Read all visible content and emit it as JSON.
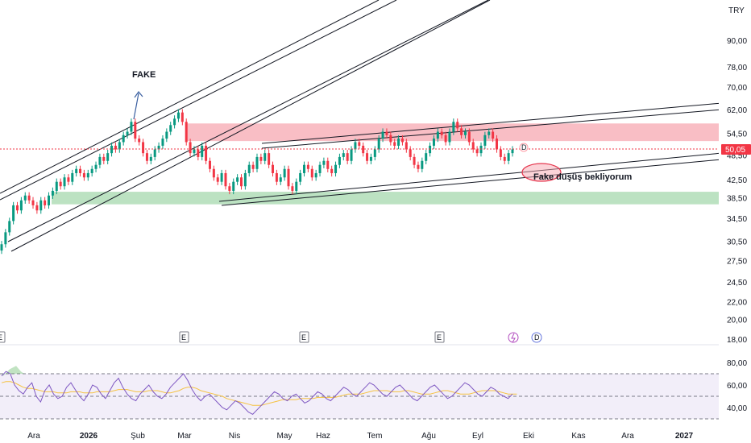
{
  "chart_data": {
    "type": "candlestick",
    "currency": "TRY",
    "price_axis": {
      "ticks": [
        {
          "v": 90,
          "label": "90,00"
        },
        {
          "v": 78,
          "label": "78,00"
        },
        {
          "v": 70,
          "label": "70,00"
        },
        {
          "v": 62,
          "label": "62,00"
        },
        {
          "v": 54.5,
          "label": "54,50"
        },
        {
          "v": 48.5,
          "label": "48,50"
        },
        {
          "v": 42.5,
          "label": "42,50"
        },
        {
          "v": 38.5,
          "label": "38,50"
        },
        {
          "v": 34.5,
          "label": "34,50"
        },
        {
          "v": 30.5,
          "label": "30,50"
        },
        {
          "v": 27.5,
          "label": "27,50"
        },
        {
          "v": 24.5,
          "label": "24,50"
        },
        {
          "v": 22,
          "label": "22,00"
        },
        {
          "v": 20,
          "label": "20,00"
        },
        {
          "v": 18,
          "label": "18,00"
        }
      ],
      "scale": "log"
    },
    "last_price": {
      "value": 50.05,
      "label": "50,05",
      "color": "#f23645"
    },
    "time_axis": [
      {
        "label": "Ara",
        "bold": false
      },
      {
        "label": "2026",
        "bold": true
      },
      {
        "label": "Şub",
        "bold": false
      },
      {
        "label": "Mar",
        "bold": false
      },
      {
        "label": "Nis",
        "bold": false
      },
      {
        "label": "May",
        "bold": false
      },
      {
        "label": "Haz",
        "bold": false
      },
      {
        "label": "Tem",
        "bold": false
      },
      {
        "label": "Ağu",
        "bold": false
      },
      {
        "label": "Eyl",
        "bold": false
      },
      {
        "label": "Eki",
        "bold": false
      },
      {
        "label": "Kas",
        "bold": false
      },
      {
        "label": "Ara",
        "bold": false
      },
      {
        "label": "2027",
        "bold": true
      }
    ],
    "candles_close_approx": [
      30,
      32,
      34,
      37,
      36,
      38,
      39,
      38,
      37,
      36,
      38,
      37,
      39,
      40,
      42,
      41,
      43,
      42,
      44,
      45,
      44,
      43,
      44,
      45,
      46,
      48,
      47,
      49,
      51,
      50,
      52,
      54,
      55,
      58,
      53,
      52,
      49,
      47,
      48,
      50,
      51,
      53,
      55,
      57,
      59,
      61,
      58,
      52,
      49,
      50,
      48,
      51,
      47,
      45,
      43,
      42,
      44,
      41,
      40,
      42,
      43,
      41,
      44,
      46,
      45,
      48,
      47,
      49,
      46,
      44,
      42,
      43,
      45,
      41,
      40,
      42,
      44,
      46,
      45,
      43,
      44,
      46,
      47,
      45,
      44,
      46,
      48,
      49,
      47,
      50,
      52,
      51,
      49,
      47,
      48,
      50,
      53,
      55,
      54,
      52,
      51,
      53,
      52,
      50,
      48,
      46,
      45,
      47,
      49,
      51,
      53,
      55,
      54,
      52,
      55,
      58,
      56,
      54,
      55,
      52,
      50,
      49,
      51,
      54,
      55,
      53,
      50,
      48,
      47,
      49,
      50
    ],
    "zones": [
      {
        "name": "resistance",
        "low": 52.3,
        "high": 57.5,
        "color": "#f7a8b1"
      },
      {
        "name": "support",
        "low": 37.2,
        "high": 39.8,
        "color": "#a5d8ad"
      }
    ],
    "annotations": [
      {
        "text": "FAKE"
      },
      {
        "text": "Fake düşüş bekliyorum"
      }
    ],
    "events": {
      "earnings_marker": "E",
      "dividend_marker": "D"
    },
    "rsi": {
      "ticks": [
        {
          "v": 80,
          "label": "80,00"
        },
        {
          "v": 60,
          "label": "60,00"
        },
        {
          "v": 40,
          "label": "40,00"
        }
      ],
      "upper": 70,
      "middle": 50,
      "lower": 30,
      "values_approx": [
        68,
        72,
        70,
        60,
        55,
        52,
        58,
        62,
        50,
        45,
        55,
        60,
        52,
        48,
        50,
        58,
        62,
        56,
        50,
        46,
        52,
        60,
        58,
        52,
        48,
        55,
        62,
        66,
        58,
        52,
        48,
        46,
        52,
        56,
        60,
        54,
        50,
        48,
        52,
        58,
        62,
        66,
        70,
        64,
        56,
        50,
        46,
        50,
        52,
        48,
        44,
        40,
        38,
        42,
        46,
        44,
        40,
        36,
        34,
        38,
        42,
        46,
        50,
        54,
        52,
        48,
        46,
        50,
        52,
        48,
        44,
        46,
        50,
        54,
        52,
        48,
        46,
        50,
        54,
        58,
        56,
        52,
        50,
        54,
        58,
        62,
        60,
        56,
        52,
        50,
        54,
        58,
        60,
        56,
        52,
        48,
        46,
        50,
        54,
        58,
        60,
        56,
        52,
        48,
        50,
        54,
        58,
        62,
        60,
        56,
        52,
        50,
        54,
        58,
        56,
        52,
        50,
        48,
        52
      ],
      "ma_approx": [
        62,
        63,
        63,
        62,
        60,
        58,
        57,
        57,
        56,
        55,
        54,
        54,
        54,
        53,
        53,
        53,
        54,
        54,
        54,
        53,
        53,
        53,
        54,
        54,
        54,
        54,
        55,
        56,
        56,
        56,
        55,
        54,
        54,
        54,
        55,
        55,
        55,
        54,
        53,
        53,
        54,
        55,
        57,
        58,
        58,
        57,
        55,
        54,
        53,
        52,
        51,
        50,
        48,
        47,
        46,
        45,
        44,
        43,
        42,
        42,
        42,
        43,
        44,
        45,
        46,
        47,
        47,
        47,
        47,
        48,
        48,
        48,
        48,
        49,
        49,
        49,
        49,
        49,
        50,
        51,
        52,
        52,
        52,
        52,
        53,
        54,
        55,
        55,
        55,
        55,
        54,
        54,
        54,
        55,
        55,
        54,
        53,
        52,
        52,
        52,
        53,
        54,
        55,
        55,
        54,
        53,
        52,
        52,
        52,
        53,
        54,
        55,
        55,
        55,
        55,
        54,
        53,
        52,
        52,
        52
      ]
    }
  }
}
